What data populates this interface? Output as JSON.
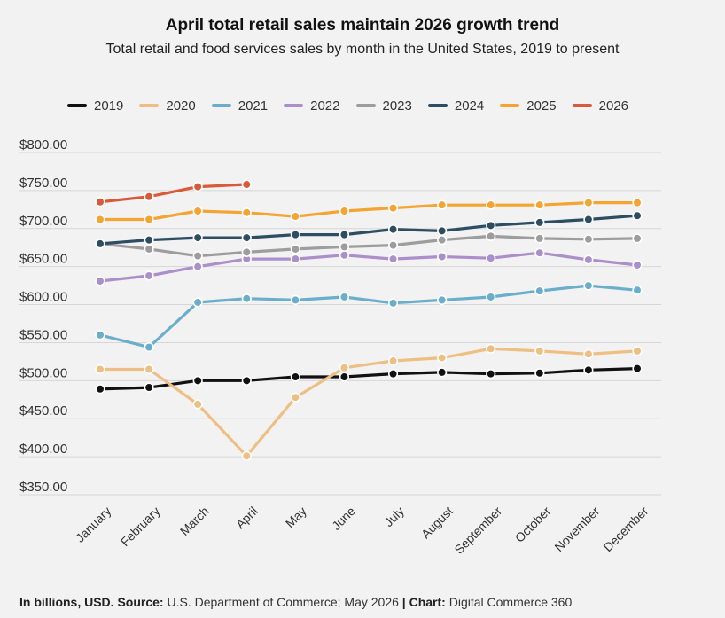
{
  "title": "April total retail sales maintain 2026 growth trend",
  "subtitle": "Total retail and food services sales by month in the United States, 2019 to present",
  "footer": {
    "units_label": "In billions, USD.",
    "source_label": "Source:",
    "source_text": "U.S. Department of Commerce; May 2026",
    "separator": "|",
    "chart_label": "Chart:",
    "chart_text": "Digital Commerce 360"
  },
  "chart_data": {
    "type": "line",
    "title": "April total retail sales maintain 2026 growth trend",
    "subtitle": "Total retail and food services sales by month in the United States, 2019 to present",
    "xlabel": "",
    "ylabel": "",
    "categories": [
      "January",
      "February",
      "March",
      "April",
      "May",
      "June",
      "July",
      "August",
      "September",
      "October",
      "November",
      "December"
    ],
    "ylim": [
      350,
      800
    ],
    "yticks": [
      350,
      400,
      450,
      500,
      550,
      600,
      650,
      700,
      750,
      800
    ],
    "ytick_labels": [
      "$350.00",
      "$400.00",
      "$450.00",
      "$500.00",
      "$550.00",
      "$600.00",
      "$650.00",
      "$700.00",
      "$750.00",
      "$800.00"
    ],
    "grid": "horizontal",
    "legend_position": "top",
    "series": [
      {
        "name": "2019",
        "color": "#111111",
        "values": [
          489,
          491,
          500,
          500,
          505,
          505,
          509,
          511,
          509,
          510,
          514,
          516
        ]
      },
      {
        "name": "2020",
        "color": "#eebf83",
        "values": [
          515,
          515,
          469,
          401,
          478,
          517,
          526,
          530,
          542,
          539,
          535,
          539
        ]
      },
      {
        "name": "2021",
        "color": "#6aaecb",
        "values": [
          560,
          544,
          603,
          608,
          606,
          610,
          602,
          606,
          610,
          618,
          625,
          619
        ]
      },
      {
        "name": "2022",
        "color": "#ab8fca",
        "values": [
          631,
          638,
          650,
          660,
          660,
          665,
          660,
          663,
          661,
          668,
          659,
          652
        ]
      },
      {
        "name": "2023",
        "color": "#9d9d9d",
        "values": [
          680,
          673,
          664,
          669,
          673,
          676,
          678,
          685,
          690,
          687,
          686,
          687
        ]
      },
      {
        "name": "2024",
        "color": "#2d4d63",
        "values": [
          680,
          685,
          688,
          688,
          692,
          692,
          699,
          697,
          704,
          708,
          712,
          717
        ]
      },
      {
        "name": "2025",
        "color": "#f3a433",
        "values": [
          712,
          712,
          723,
          721,
          716,
          723,
          727,
          731,
          731,
          731,
          734,
          734
        ]
      },
      {
        "name": "2026",
        "color": "#d95a3a",
        "values": [
          735,
          742,
          755,
          758,
          null,
          null,
          null,
          null,
          null,
          null,
          null,
          null
        ]
      }
    ]
  }
}
